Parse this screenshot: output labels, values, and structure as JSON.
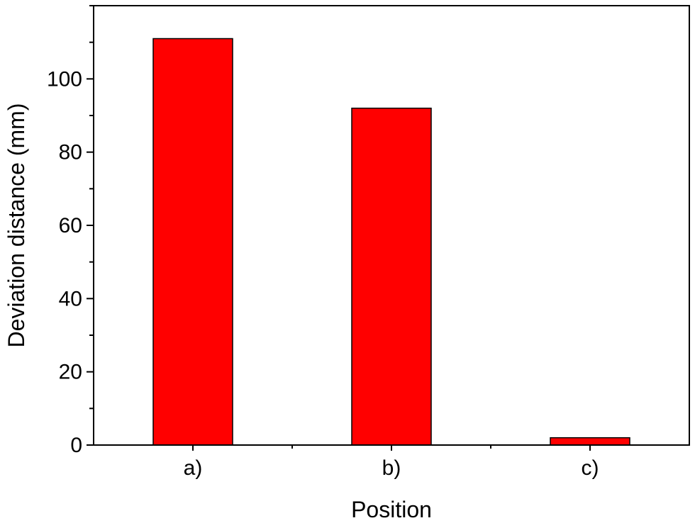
{
  "chart_data": {
    "type": "bar",
    "title": "",
    "xlabel": "Position",
    "ylabel": "Deviation distance (mm)",
    "categories": [
      "a)",
      "b)",
      "c)"
    ],
    "values": [
      111,
      92,
      2
    ],
    "ylim": [
      0,
      120
    ],
    "yticks": [
      0,
      20,
      40,
      60,
      80,
      100
    ],
    "yticklabels": [
      "0",
      "20",
      "40",
      "60",
      "80",
      "100"
    ],
    "grid": false,
    "legend": "none",
    "bar_color": "#ff0000",
    "bar_edge_color": "#000000"
  }
}
